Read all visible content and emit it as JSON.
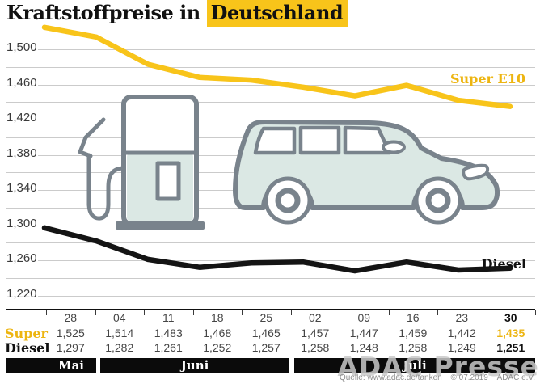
{
  "title": {
    "text": "Kraftstoffpreise in",
    "highlight": "Deutschland"
  },
  "colors": {
    "accent_yellow": "#F8C41A",
    "accent_yellow_text": "#EDB511",
    "diesel_black": "#141414",
    "illustration_fill": "#DBE8E4",
    "illustration_stroke": "#79838C"
  },
  "chart": {
    "y_labels": [
      "1,500",
      "1,460",
      "1,420",
      "1,380",
      "1,340",
      "1,300",
      "1,260",
      "1,220"
    ],
    "series_labels": {
      "super": "Super E10",
      "diesel": "Diesel"
    }
  },
  "chart_data": {
    "type": "line",
    "categories": [
      "28",
      "04",
      "11",
      "18",
      "25",
      "02",
      "09",
      "16",
      "23",
      "30"
    ],
    "month_groups": [
      {
        "label": "Mai",
        "count": 1
      },
      {
        "label": "Juni",
        "count": 4
      },
      {
        "label": "Juli",
        "count": 5
      }
    ],
    "series": [
      {
        "name": "Super E10",
        "color": "#F8C41A",
        "values": [
          1.525,
          1.514,
          1.483,
          1.468,
          1.465,
          1.457,
          1.447,
          1.459,
          1.442,
          1.435
        ]
      },
      {
        "name": "Diesel",
        "color": "#141414",
        "values": [
          1.297,
          1.282,
          1.261,
          1.252,
          1.257,
          1.258,
          1.248,
          1.258,
          1.249,
          1.251
        ]
      }
    ],
    "title": "Kraftstoffpreise in Deutschland",
    "xlabel": "",
    "ylabel": "",
    "ylim": [
      1.22,
      1.54
    ],
    "y_tick_step_labeled": 0.04,
    "y_tick_step_grid": 0.02,
    "grid": true,
    "legend_position": "inline-right"
  },
  "table": {
    "row_labels": {
      "super": "Super",
      "diesel": "Diesel"
    },
    "columns": [
      {
        "date": "28",
        "super": "1,525",
        "diesel": "1,297"
      },
      {
        "date": "04",
        "super": "1,514",
        "diesel": "1,282"
      },
      {
        "date": "11",
        "super": "1,483",
        "diesel": "1,261"
      },
      {
        "date": "18",
        "super": "1,468",
        "diesel": "1,252"
      },
      {
        "date": "25",
        "super": "1,465",
        "diesel": "1,257"
      },
      {
        "date": "02",
        "super": "1,457",
        "diesel": "1,258"
      },
      {
        "date": "09",
        "super": "1,447",
        "diesel": "1,248"
      },
      {
        "date": "16",
        "super": "1,459",
        "diesel": "1,258"
      },
      {
        "date": "23",
        "super": "1,442",
        "diesel": "1,249"
      },
      {
        "date": "30",
        "super": "1,435",
        "diesel": "1,251"
      }
    ],
    "months": [
      "Mai",
      "Juni",
      "Juli"
    ]
  },
  "footer": {
    "source": "Quelle: www.adac.de/tanken",
    "copyright": "© 07.2019",
    "organization": "ADAC e.V.",
    "watermark": "ADAC Presse"
  }
}
